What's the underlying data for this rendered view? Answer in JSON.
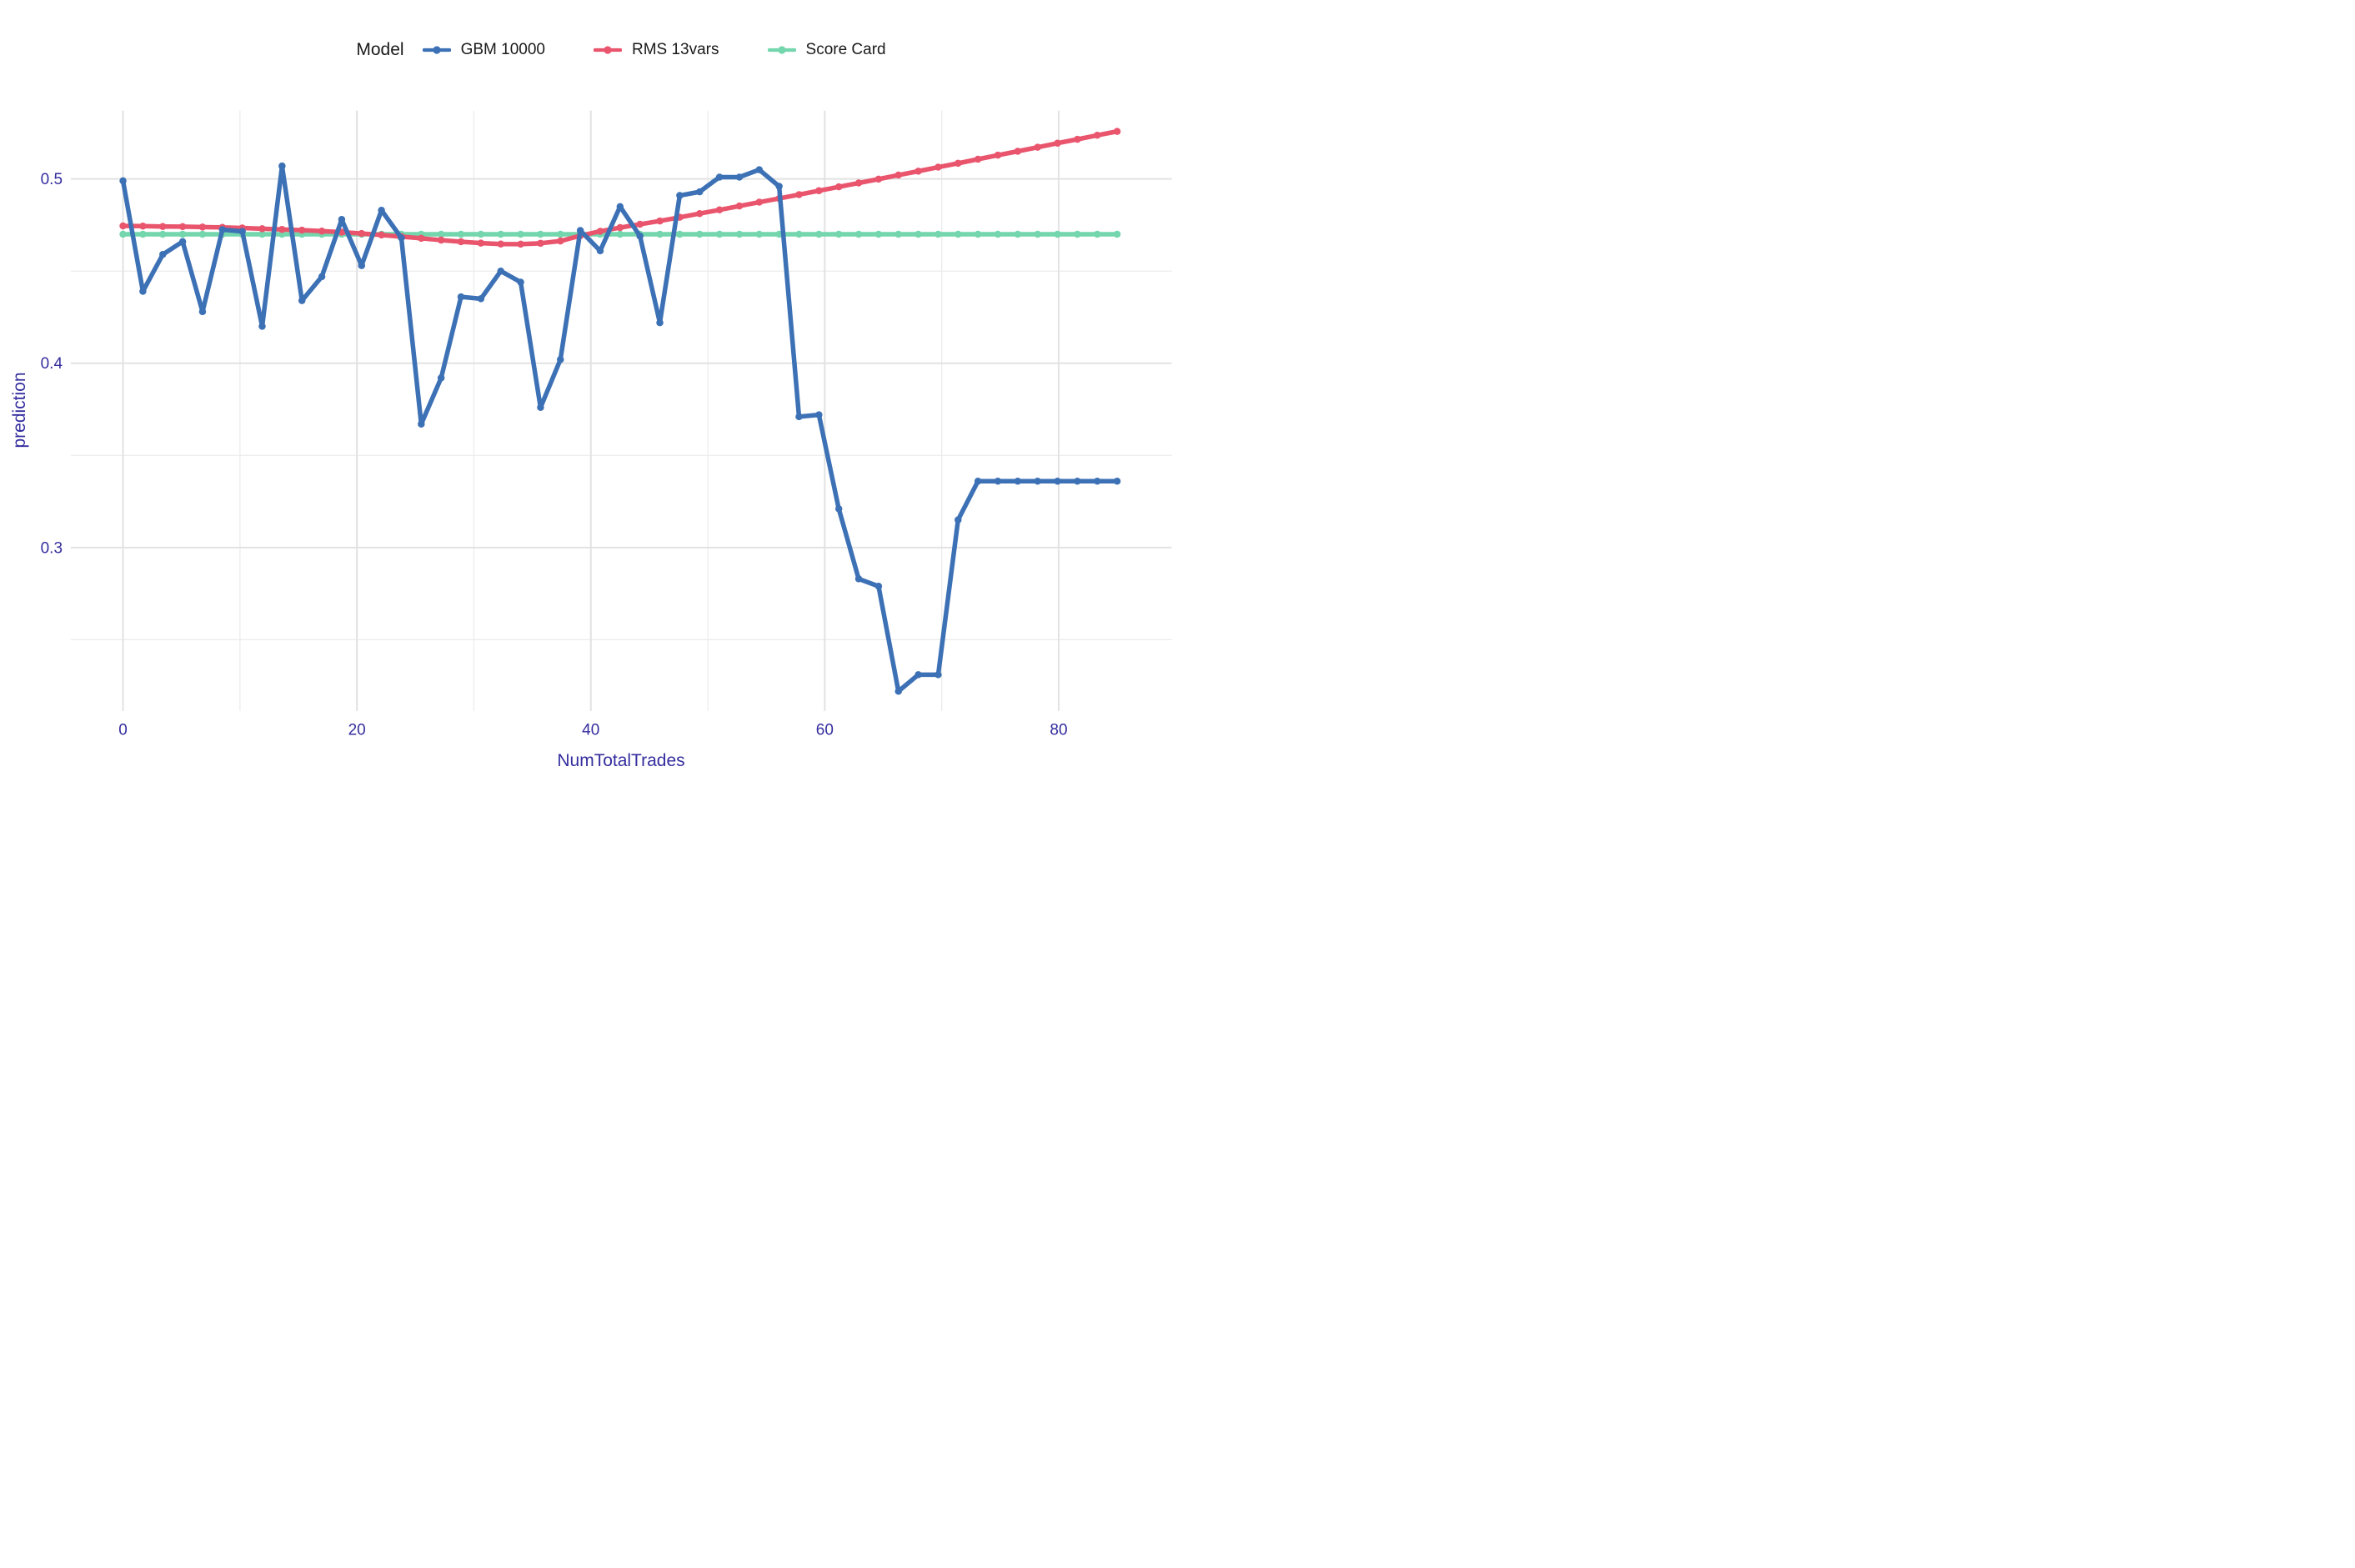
{
  "legend": {
    "title": "Model"
  },
  "axes": {
    "x": {
      "title": "NumTotalTrades"
    },
    "y": {
      "title": "prediction"
    }
  },
  "colors": {
    "axis_text": "#342D9E",
    "legend_text": "#1A1A1A",
    "grid_major": "#E2E2E2",
    "grid_minor": "#EBEBEB",
    "background": "#FFFFFF"
  },
  "chart_data": {
    "type": "line",
    "title": "",
    "xlabel": "NumTotalTrades",
    "ylabel": "prediction",
    "legend_title": "Model",
    "legend_position": "top",
    "grid": true,
    "xlim": [
      -4.5,
      89.7
    ],
    "ylim": [
      0.211,
      0.537
    ],
    "x_ticks": {
      "values": [
        0,
        20,
        40,
        60,
        80
      ],
      "labels": [
        "0",
        "20",
        "40",
        "60",
        "80"
      ],
      "minor": [
        10,
        30,
        50,
        70
      ]
    },
    "y_ticks": {
      "values": [
        0.5,
        0.4,
        0.3
      ],
      "labels": [
        "0.5",
        "0.4",
        "0.3"
      ],
      "minor": [
        0.45,
        0.35,
        0.25
      ]
    },
    "x": [
      0,
      1.7,
      3.4,
      5.1,
      6.8,
      8.5,
      10.2,
      11.9,
      13.6,
      15.3,
      17,
      18.7,
      20.4,
      22.1,
      23.8,
      25.5,
      27.2,
      28.9,
      30.6,
      32.3,
      34,
      35.7,
      37.4,
      39.1,
      40.8,
      42.5,
      44.2,
      45.9,
      47.6,
      49.3,
      51,
      52.7,
      54.4,
      56.1,
      57.8,
      59.5,
      61.2,
      62.9,
      64.6,
      66.3,
      68,
      69.7,
      71.4,
      73.1,
      74.8,
      76.5,
      78.2,
      79.9,
      81.6,
      83.3,
      85
    ],
    "series": [
      {
        "name": "GBM 10000",
        "color": "#3D71B5",
        "values": [
          0.499,
          0.439,
          0.459,
          0.466,
          0.428,
          0.4725,
          0.4715,
          0.42,
          0.507,
          0.434,
          0.447,
          0.478,
          0.453,
          0.483,
          0.468,
          0.367,
          0.392,
          0.436,
          0.435,
          0.45,
          0.444,
          0.376,
          0.402,
          0.472,
          0.461,
          0.485,
          0.469,
          0.422,
          0.491,
          0.493,
          0.501,
          0.501,
          0.505,
          0.496,
          0.371,
          0.372,
          0.321,
          0.283,
          0.279,
          0.222,
          0.231,
          0.231,
          0.315,
          0.336,
          0.336,
          0.336,
          0.336,
          0.336,
          0.336,
          0.336,
          0.336
        ]
      },
      {
        "name": "RMS 13vars",
        "color": "#E9556D",
        "values": [
          0.4745,
          0.4744,
          0.4742,
          0.4741,
          0.4739,
          0.4737,
          0.4734,
          0.473,
          0.4726,
          0.4722,
          0.4717,
          0.4711,
          0.4704,
          0.4696,
          0.4687,
          0.4678,
          0.4668,
          0.4659,
          0.4652,
          0.4647,
          0.4646,
          0.4651,
          0.4663,
          0.4692,
          0.4716,
          0.4736,
          0.4754,
          0.4772,
          0.4792,
          0.4812,
          0.4832,
          0.4853,
          0.4874,
          0.4894,
          0.4915,
          0.4936,
          0.4957,
          0.4978,
          0.4999,
          0.5021,
          0.5042,
          0.5064,
          0.5085,
          0.5107,
          0.5129,
          0.515,
          0.5172,
          0.5194,
          0.5215,
          0.5237,
          0.5258
        ]
      },
      {
        "name": "Score Card",
        "color": "#74D6AD",
        "values": [
          0.47,
          0.47,
          0.47,
          0.47,
          0.47,
          0.47,
          0.47,
          0.47,
          0.47,
          0.47,
          0.47,
          0.47,
          0.47,
          0.47,
          0.47,
          0.47,
          0.47,
          0.47,
          0.47,
          0.47,
          0.47,
          0.47,
          0.47,
          0.47,
          0.47,
          0.47,
          0.47,
          0.47,
          0.47,
          0.47,
          0.47,
          0.47,
          0.47,
          0.47,
          0.47,
          0.47,
          0.47,
          0.47,
          0.47,
          0.47,
          0.47,
          0.47,
          0.47,
          0.47,
          0.47,
          0.47,
          0.47,
          0.47,
          0.47,
          0.47,
          0.47
        ]
      }
    ]
  }
}
